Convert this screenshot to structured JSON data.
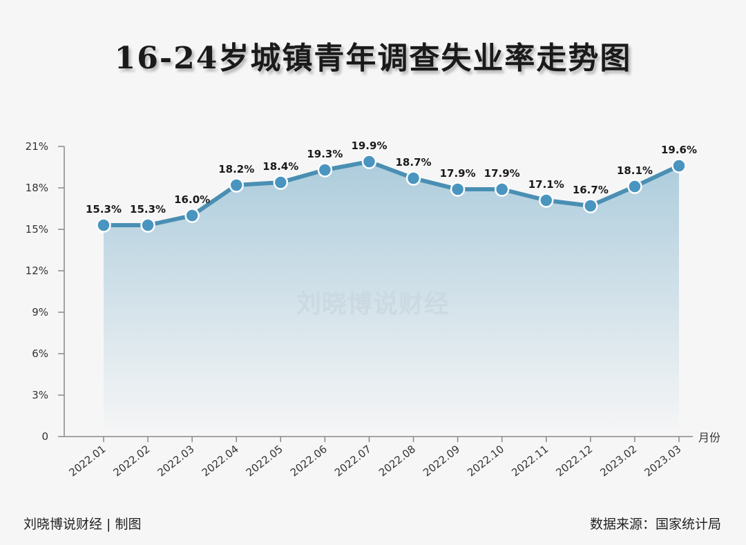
{
  "title": "16-24岁城镇青年调查失业率走势图",
  "watermark": "刘晓博说财经",
  "footer": {
    "left": "刘晓博说财经 | 制图",
    "right": "数据来源：国家统计局"
  },
  "colors": {
    "line": "#4a8fb3",
    "marker_fill": "#4a95c0",
    "marker_stroke": "#ffffff",
    "area_top": "#a9cadb",
    "area_bottom": "#f6f6f6",
    "axis": "#888888"
  },
  "chart_data": {
    "type": "area",
    "title": "16-24岁城镇青年调查失业率走势图",
    "xlabel": "月份",
    "ylabel": "",
    "categories": [
      "2022.01",
      "2022.02",
      "2022.03",
      "2022.04",
      "2022.05",
      "2022.06",
      "2022.07",
      "2022.08",
      "2022.09",
      "2022.10",
      "2022.11",
      "2022.12",
      "2023.02",
      "2023.03"
    ],
    "values": [
      15.3,
      15.3,
      16.0,
      18.2,
      18.4,
      19.3,
      19.9,
      18.7,
      17.9,
      17.9,
      17.1,
      16.7,
      18.1,
      19.6
    ],
    "value_labels": [
      "15.3%",
      "15.3%",
      "16.0%",
      "18.2%",
      "18.4%",
      "19.3%",
      "19.9%",
      "18.7%",
      "17.9%",
      "17.9%",
      "17.1%",
      "16.7%",
      "18.1%",
      "19.6%"
    ],
    "yticks": [
      0,
      3,
      6,
      9,
      12,
      15,
      18,
      21
    ],
    "ytick_labels": [
      "0",
      "3%",
      "6%",
      "9%",
      "12%",
      "15%",
      "18%",
      "21%"
    ],
    "ylim": [
      0,
      21
    ],
    "grid": false,
    "legend": null
  }
}
